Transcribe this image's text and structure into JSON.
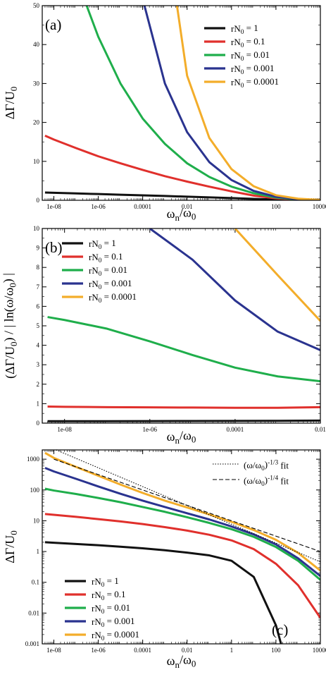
{
  "colors": {
    "rN0=1": "#111111",
    "rN0=0.1": "#e0302c",
    "rN0=0.01": "#1fae4b",
    "rN0=0.001": "#2a338f",
    "rN0=0.0001": "#f3ad2a"
  },
  "chart_data": [
    {
      "type": "line",
      "panel_label": "(a)",
      "xscale": "log",
      "xlim": [
        3e-09,
        10000
      ],
      "ylim": [
        0,
        50
      ],
      "xticks": [
        1e-08,
        1e-06,
        0.0001,
        0.01,
        1,
        100,
        10000
      ],
      "xtick_labels": [
        "1e-08",
        "1e-06",
        "0.0001",
        "0.01",
        "1",
        "100",
        "10000"
      ],
      "yticks": [
        0,
        10,
        20,
        30,
        40,
        50
      ],
      "ytick_labels": [
        "0",
        "10",
        "20",
        "30",
        "40",
        "50"
      ],
      "xlabel": "ω_n/ω_0",
      "ylabel": "ΔΓ/U_0",
      "legend_position": "top-right",
      "series": [
        {
          "name": "rN_0 = 1",
          "x": [
            4e-09,
            1e-08,
            1e-07,
            1e-06,
            1e-05,
            0.0001,
            0.001,
            0.01,
            0.1,
            1,
            10,
            100,
            1000,
            10000
          ],
          "values": [
            2.0,
            1.93,
            1.76,
            1.6,
            1.43,
            1.27,
            1.1,
            0.92,
            0.75,
            0.56,
            0.37,
            0.18,
            0.06,
            0.02
          ]
        },
        {
          "name": "rN_0 = 0.1",
          "x": [
            4e-09,
            1e-08,
            1e-07,
            1e-06,
            1e-05,
            0.0001,
            0.001,
            0.01,
            0.1,
            1,
            10,
            100,
            1000,
            10000
          ],
          "values": [
            16.6,
            15.6,
            13.4,
            11.3,
            9.5,
            7.8,
            6.2,
            4.8,
            3.5,
            2.3,
            1.2,
            0.5,
            0.15,
            0.05
          ]
        },
        {
          "name": "rN_0 = 0.01",
          "x": [
            3e-07,
            1e-06,
            1e-05,
            0.0001,
            0.001,
            0.01,
            0.1,
            1,
            10,
            100,
            1000,
            10000
          ],
          "values": [
            50,
            42,
            30,
            21,
            14.5,
            9.5,
            6.0,
            3.5,
            1.8,
            0.7,
            0.22,
            0.06
          ]
        },
        {
          "name": "rN_0 = 0.001",
          "x": [
            0.00012,
            0.001,
            0.01,
            0.1,
            1,
            10,
            100,
            1000,
            10000
          ],
          "values": [
            50,
            30,
            17.5,
            9.8,
            5.2,
            2.4,
            0.9,
            0.28,
            0.08
          ]
        },
        {
          "name": "rN_0 = 0.0001",
          "x": [
            0.0035,
            0.01,
            0.1,
            1,
            10,
            100,
            1000,
            10000
          ],
          "values": [
            50,
            32,
            16,
            8,
            3.6,
            1.3,
            0.4,
            0.1
          ]
        }
      ]
    },
    {
      "type": "line",
      "panel_label": "(b)",
      "xscale": "log",
      "xlim": [
        3e-09,
        0.01
      ],
      "ylim": [
        0,
        10
      ],
      "xticks": [
        1e-08,
        1e-06,
        0.0001,
        0.01
      ],
      "xtick_labels": [
        "1e-08",
        "1e-06",
        "0.0001",
        "0.01"
      ],
      "yticks": [
        0,
        1,
        2,
        3,
        4,
        5,
        6,
        7,
        8,
        9,
        10
      ],
      "ytick_labels": [
        "0",
        "1",
        "2",
        "3",
        "4",
        "5",
        "6",
        "7",
        "8",
        "9",
        "10"
      ],
      "xlabel": "ω_n/ω_0",
      "ylabel": "(ΔΓ/U_0) / | ln(ω/ω_0) |",
      "legend_position": "top-left",
      "series": [
        {
          "name": "rN_0 = 1",
          "x": [
            4e-09,
            1e-08,
            1e-07,
            1e-06,
            1e-05,
            0.0001,
            0.001,
            0.01
          ],
          "values": [
            0.1,
            0.1,
            0.1,
            0.105,
            0.11,
            0.115,
            0.12,
            0.13
          ]
        },
        {
          "name": "rN_0 = 0.1",
          "x": [
            4e-09,
            1e-08,
            1e-07,
            1e-06,
            1e-05,
            0.0001,
            0.001,
            0.01
          ],
          "values": [
            0.85,
            0.84,
            0.82,
            0.81,
            0.8,
            0.79,
            0.79,
            0.82
          ]
        },
        {
          "name": "rN_0 = 0.01",
          "x": [
            4e-09,
            1e-08,
            1e-07,
            1e-06,
            1e-05,
            0.0001,
            0.001,
            0.01
          ],
          "values": [
            5.45,
            5.3,
            4.85,
            4.2,
            3.5,
            2.85,
            2.4,
            2.15
          ]
        },
        {
          "name": "rN_0 = 0.001",
          "x": [
            1e-06,
            1e-05,
            0.0001,
            0.001,
            0.01
          ],
          "values": [
            10,
            8.4,
            6.3,
            4.7,
            3.75
          ]
        },
        {
          "name": "rN_0 = 0.0001",
          "x": [
            0.0001,
            0.001,
            0.01
          ],
          "values": [
            10,
            7.6,
            5.25
          ]
        }
      ]
    },
    {
      "type": "line",
      "panel_label": "(c)",
      "xscale": "log",
      "yscale": "log",
      "xlim": [
        3e-09,
        10000
      ],
      "ylim": [
        0.001,
        2000
      ],
      "xticks": [
        1e-08,
        1e-06,
        0.0001,
        0.01,
        1,
        100,
        10000
      ],
      "xtick_labels": [
        "1e-08",
        "1e-06",
        "0.0001",
        "0.01",
        "1",
        "100",
        "10000"
      ],
      "yticks": [
        0.001,
        0.01,
        0.1,
        1,
        10,
        100,
        1000
      ],
      "ytick_labels": [
        "0.001",
        "0.01",
        "0.1",
        "1",
        "10",
        "100",
        "1000"
      ],
      "xlabel": "ω_n/ω_0",
      "ylabel": "ΔΓ/U_0",
      "legend_position": "bottom-left",
      "fit_legend": [
        {
          "name": "(ω/ω_0)^-1/3 fit",
          "style": "dotted"
        },
        {
          "name": "(ω/ω_0)^-1/4 fit",
          "style": "dashed"
        }
      ],
      "series": [
        {
          "name": "rN_0 = 1",
          "x": [
            4e-09,
            1e-08,
            1e-07,
            1e-06,
            1e-05,
            0.0001,
            0.001,
            0.01,
            0.1,
            1,
            10,
            100,
            170
          ],
          "values": [
            2.0,
            1.93,
            1.76,
            1.6,
            1.43,
            1.27,
            1.1,
            0.92,
            0.75,
            0.5,
            0.15,
            0.004,
            0.001
          ]
        },
        {
          "name": "rN_0 = 0.1",
          "x": [
            4e-09,
            1e-08,
            1e-07,
            1e-06,
            1e-05,
            0.0001,
            0.001,
            0.01,
            0.1,
            1,
            10,
            100,
            1000,
            10000
          ],
          "values": [
            16.6,
            15.6,
            13.4,
            11.3,
            9.5,
            7.8,
            6.2,
            4.8,
            3.5,
            2.3,
            1.2,
            0.4,
            0.08,
            0.007
          ]
        },
        {
          "name": "rN_0 = 0.01",
          "x": [
            4e-09,
            1e-08,
            1e-07,
            1e-06,
            1e-05,
            0.0001,
            0.001,
            0.01,
            0.1,
            1,
            10,
            100,
            1000,
            10000
          ],
          "values": [
            110,
            96,
            74,
            55,
            40,
            28,
            19.5,
            13,
            8.5,
            5.3,
            3.0,
            1.4,
            0.5,
            0.12
          ]
        },
        {
          "name": "rN_0 = 0.001",
          "x": [
            4e-09,
            1e-08,
            1e-07,
            1e-06,
            1e-05,
            0.0001,
            0.001,
            0.01,
            0.1,
            1,
            10,
            100,
            1000,
            10000
          ],
          "values": [
            520,
            400,
            230,
            130,
            75,
            45,
            28,
            17.5,
            11,
            6.5,
            3.6,
            1.7,
            0.6,
            0.16
          ]
        },
        {
          "name": "rN_0 = 0.0001",
          "x": [
            4e-09,
            1e-08,
            1e-07,
            1e-06,
            1e-05,
            0.0001,
            0.001,
            0.01,
            0.1,
            1,
            10,
            100,
            1000,
            10000
          ],
          "values": [
            1600,
            1100,
            560,
            290,
            150,
            80,
            45,
            27,
            16,
            9.2,
            5.0,
            2.4,
            0.9,
            0.24
          ]
        },
        {
          "name": "(ω/ω_0)^-1/3 fit",
          "style": "dotted",
          "x": [
            1e-08,
            10000
          ],
          "values": [
            2150,
            0.46
          ]
        },
        {
          "name": "(ω/ω_0)^-1/4 fit",
          "style": "dashed",
          "x": [
            1e-08,
            10000
          ],
          "values": [
            1000,
            1.0
          ]
        }
      ]
    }
  ]
}
